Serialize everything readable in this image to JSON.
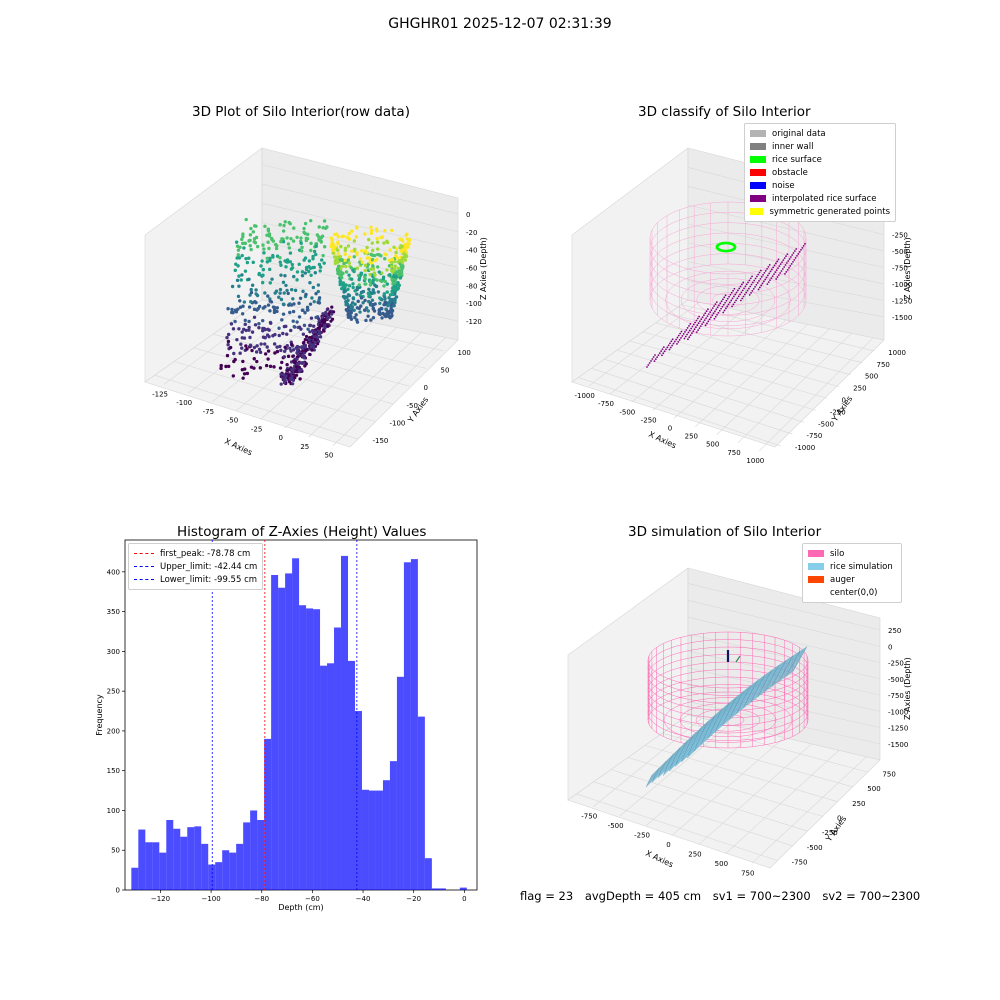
{
  "page": {
    "title": "GHGHR01 2025-12-07 02:31:39",
    "footer": {
      "flag": "flag = 23",
      "avg_depth": "avgDepth = 405 cm",
      "sv1": "sv1 = 700~2300",
      "sv2": "sv2 = 700~2300"
    }
  },
  "chart_data": [
    {
      "type": "scatter",
      "title": "3D Plot of Silo Interior(row data)",
      "xlabel": "X Axies",
      "ylabel": "Y Axies",
      "zlabel": "Z Axies (Depth)",
      "x_ticks": [
        "-125",
        "-100",
        "-75",
        "-50",
        "-25",
        "0",
        "25",
        "50"
      ],
      "y_ticks": [
        "-150",
        "-100",
        "-50",
        "0",
        "50",
        "100"
      ],
      "z_ticks": [
        "-120",
        "-100",
        "-80",
        "-60",
        "-40",
        "-20",
        "0"
      ],
      "colormap": "viridis"
    },
    {
      "type": "scatter",
      "title": "3D classify of Silo Interior",
      "xlabel": "X Axies",
      "ylabel": "Y Axies",
      "zlabel": "Z Axies (Depth)",
      "x_ticks": [
        "-1000",
        "-750",
        "-500",
        "-250",
        "0",
        "250",
        "500",
        "750",
        "1000"
      ],
      "y_ticks": [
        "-1000",
        "-750",
        "-500",
        "-250",
        "0",
        "250",
        "500",
        "750",
        "1000"
      ],
      "z_ticks": [
        "-1500",
        "-1250",
        "-1000",
        "-750",
        "-500",
        "-250",
        "0"
      ],
      "legend": [
        {
          "label": "original data",
          "color": "#b3b3b3"
        },
        {
          "label": "inner wall",
          "color": "#808080"
        },
        {
          "label": "rice surface",
          "color": "#00ff00"
        },
        {
          "label": "obstacle",
          "color": "#ff0000"
        },
        {
          "label": "noise",
          "color": "#0000ff"
        },
        {
          "label": "interpolated rice surface",
          "color": "#800080"
        },
        {
          "label": "symmetric generated points",
          "color": "#ffff00"
        }
      ]
    },
    {
      "type": "bar",
      "title": "Histogram of Z-Axies (Height) Values",
      "xlabel": "Depth (cm)",
      "ylabel": "Frequency",
      "xlim": [
        -134,
        5
      ],
      "ylim": [
        0,
        440
      ],
      "x_ticks": [
        -120,
        -100,
        -80,
        -60,
        -40,
        -20,
        0
      ],
      "y_ticks": [
        0,
        50,
        100,
        150,
        200,
        250,
        300,
        350,
        400
      ],
      "bin_edges_start": -131.5,
      "bin_width": 2.76,
      "values": [
        28,
        76,
        60,
        60,
        47,
        88,
        77,
        67,
        79,
        80,
        58,
        32,
        35,
        50,
        47,
        58,
        85,
        100,
        88,
        190,
        396,
        380,
        398,
        417,
        358,
        354,
        353,
        282,
        285,
        330,
        420,
        288,
        225,
        126,
        125,
        125,
        138,
        162,
        268,
        412,
        416,
        218,
        40,
        2,
        2,
        0,
        0,
        3,
        0
      ],
      "color": "#0000ff",
      "lines": [
        {
          "label": "first_peak: -78.78 cm",
          "x": -78.78,
          "color": "#ff0000"
        },
        {
          "label": "Upper_limit: -42.44 cm",
          "x": -42.44,
          "color": "#0000ff"
        },
        {
          "label": "Lower_limit: -99.55 cm",
          "x": -99.55,
          "color": "#0000ff"
        }
      ]
    },
    {
      "type": "area",
      "title": "3D simulation of Silo Interior",
      "xlabel": "X Axies",
      "ylabel": "Y Axies",
      "zlabel": "Z Axies (Depth)",
      "x_ticks": [
        "-750",
        "-500",
        "-250",
        "0",
        "250",
        "500",
        "750"
      ],
      "y_ticks": [
        "-750",
        "-500",
        "-250",
        "0",
        "250",
        "500",
        "750"
      ],
      "z_ticks": [
        "-1500",
        "-1250",
        "-1000",
        "-750",
        "-500",
        "-250",
        "0",
        "250"
      ],
      "legend": [
        {
          "label": "silo",
          "color": "#ff69b4"
        },
        {
          "label": "rice simulation",
          "color": "#87ceeb"
        },
        {
          "label": "auger",
          "color": "#ff4500"
        },
        {
          "label": "center(0,0)",
          "color": "#ffffff"
        }
      ]
    }
  ]
}
